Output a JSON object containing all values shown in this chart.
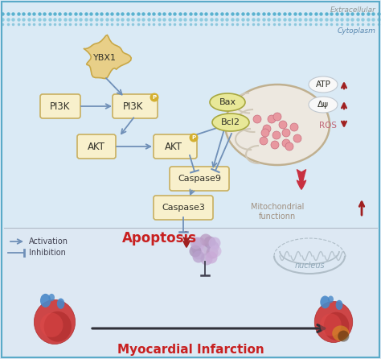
{
  "bg_top": "#daeaf5",
  "bg_bottom": "#dde8f3",
  "border_color": "#5aaac8",
  "mem_color1": "#5ab2d0",
  "mem_color2": "#90cce0",
  "extracellular_text": "Extracellular",
  "cytoplasm_text": "Cytoplasm",
  "mito_text": "Mitochondrial\nfunctionn",
  "nucleus_text": "nucleus",
  "apoptosis_text": "Apoptosis",
  "mi_text": "Myocardial Infarction",
  "arrow_blue": "#7090b8",
  "arrow_dark_red": "#a02020",
  "node_fill": "#f8f0cc",
  "node_border": "#c8b060",
  "mito_fill": "#ede8e0",
  "mito_border": "#c0b090",
  "mito_inner": "#d0c8b8",
  "bax_fill": "#e8e898",
  "bax_border": "#a8a840",
  "text_dark": "#303028",
  "text_red": "#c82020",
  "text_mito": "#a09080",
  "text_nucleus": "#90a8b8",
  "dots_pink": "#e898a0",
  "dots_border": "#c87080",
  "atp_fill": "#f8f8f8",
  "atp_border": "#c0c8d0",
  "cluster_colors": [
    "#c0a8d0",
    "#b898c0",
    "#d0b8e0",
    "#a890b8",
    "#caaad8",
    "#b8a0cc",
    "#c8b0dc"
  ],
  "separator_color": "#b0bcc8",
  "legend_arrow": "#7090b8",
  "mi_arrow_color": "#303038",
  "nucleus_curve_color": "#b0bec8",
  "nucleus_dna_color": "#b0bec8"
}
